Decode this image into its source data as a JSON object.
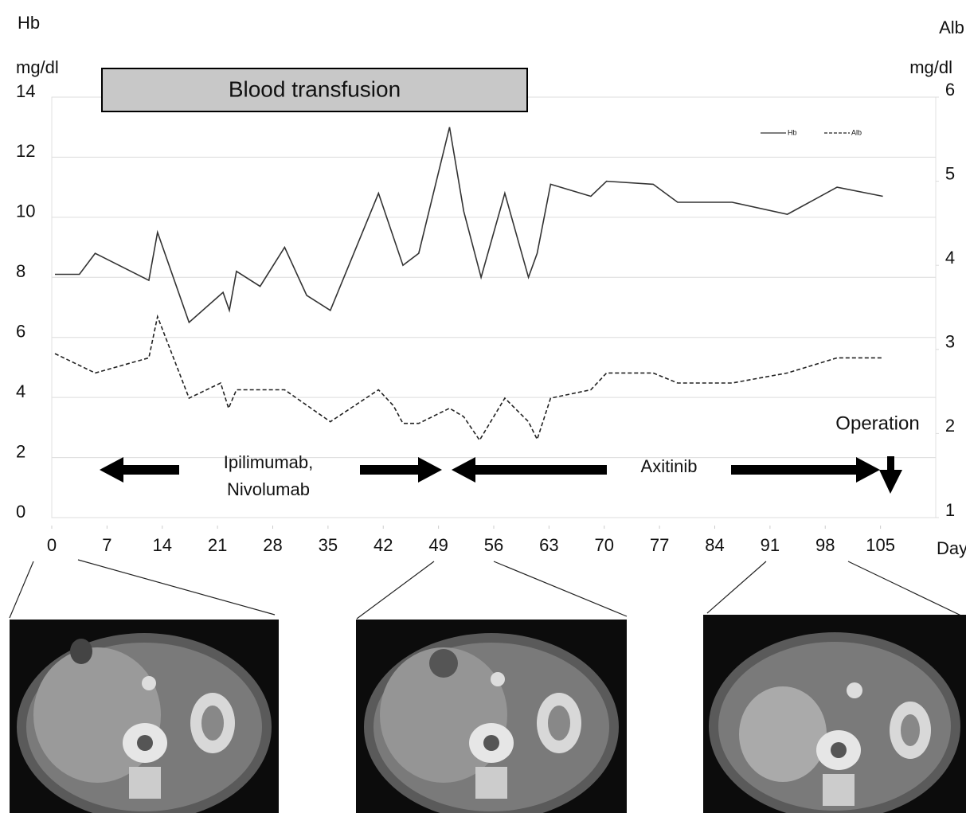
{
  "chart_data": {
    "type": "line",
    "y_label_top": "Hb",
    "y_label_unit": "mg/dl",
    "y2_label_top": "Alb",
    "y2_label_unit": "mg/dl",
    "x_label": "Day",
    "xlim": [
      0,
      112
    ],
    "xticks": [
      0,
      7,
      14,
      21,
      28,
      35,
      42,
      49,
      56,
      63,
      70,
      77,
      84,
      91,
      98,
      105
    ],
    "ylim": [
      0,
      14
    ],
    "yticks": [
      0,
      2,
      4,
      6,
      8,
      10,
      12,
      14
    ],
    "y2lim": [
      1,
      6
    ],
    "y2ticks": [
      1,
      2,
      3,
      4,
      5,
      6
    ],
    "grid": true,
    "series": [
      {
        "name": "Hb",
        "color": "#333333",
        "dash": "solid",
        "x": [
          0.4,
          3.5,
          5.5,
          12.3,
          13.4,
          17.4,
          21.7,
          22.5,
          23.4,
          26.4,
          29.5,
          32.3,
          35.3,
          41.4,
          44.5,
          46.5,
          50.4,
          52.2,
          54.4,
          57.4,
          60.4,
          61.5,
          63.2,
          68.3,
          70.3,
          76.2,
          79.3,
          86.2,
          93.2,
          99.5,
          105.3
        ],
        "values": [
          8.1,
          8.1,
          8.8,
          7.9,
          9.5,
          6.5,
          7.5,
          6.9,
          8.2,
          7.7,
          9.0,
          7.4,
          6.9,
          10.8,
          8.4,
          8.8,
          13.0,
          10.2,
          8.0,
          10.8,
          8.0,
          8.8,
          11.1,
          10.7,
          11.2,
          11.1,
          10.5,
          10.5,
          10.1,
          11.0,
          10.7
        ]
      },
      {
        "name": "Alb",
        "color": "#222222",
        "dash": "dashed",
        "axis": "y2",
        "x": [
          0.4,
          5.5,
          12.3,
          13.4,
          17.4,
          21.4,
          22.4,
          23.4,
          29.5,
          35.3,
          41.4,
          43.3,
          44.5,
          46.5,
          50.4,
          52.2,
          54.2,
          57.4,
          60.4,
          61.5,
          63.2,
          68.3,
          70.3,
          76.2,
          79.3,
          86.2,
          93.2,
          99.5,
          105.3
        ],
        "values": [
          2.95,
          2.72,
          2.9,
          3.39,
          2.42,
          2.6,
          2.3,
          2.52,
          2.52,
          2.14,
          2.52,
          2.33,
          2.12,
          2.12,
          2.3,
          2.2,
          1.92,
          2.42,
          2.14,
          1.93,
          2.42,
          2.52,
          2.72,
          2.72,
          2.6,
          2.6,
          2.72,
          2.9,
          2.9
        ]
      }
    ],
    "annotations": [
      "Blood transfusion",
      "Ipilimumab,",
      "Nivolumab",
      "Axitinib",
      "Operation"
    ]
  }
}
